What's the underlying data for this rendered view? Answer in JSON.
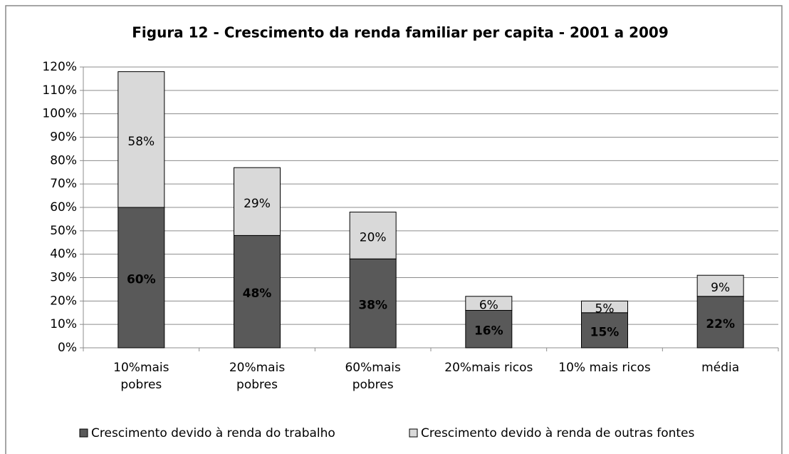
{
  "chart_data": {
    "type": "stacked_bar",
    "title": "Figura 12 - Crescimento da renda familiar per capita - 2001 a 2009",
    "categories": [
      "10%mais\npobres",
      "20%mais\npobres",
      "60%mais\npobres",
      "20%mais ricos",
      "10% mais ricos",
      "média"
    ],
    "series": [
      {
        "name": "Crescimento devido à renda do trabalho",
        "color": "#595959",
        "values": [
          60,
          48,
          38,
          16,
          15,
          22
        ],
        "value_labels": [
          "60%",
          "48%",
          "38%",
          "16%",
          "15%",
          "22%"
        ]
      },
      {
        "name": "Crescimento devido à renda de outras fontes",
        "color": "#d9d9d9",
        "values": [
          58,
          29,
          20,
          6,
          5,
          9
        ],
        "value_labels": [
          "58%",
          "29%",
          "20%",
          "6%",
          "5%",
          "9%"
        ]
      }
    ],
    "ylim": [
      0,
      120
    ],
    "yticks": [
      {
        "value": 0,
        "label": "0%"
      },
      {
        "value": 10,
        "label": "10%"
      },
      {
        "value": 20,
        "label": "20%"
      },
      {
        "value": 30,
        "label": "30%"
      },
      {
        "value": 40,
        "label": "40%"
      },
      {
        "value": 50,
        "label": "50%"
      },
      {
        "value": 60,
        "label": "60%"
      },
      {
        "value": 70,
        "label": "70%"
      },
      {
        "value": 80,
        "label": "80%"
      },
      {
        "value": 90,
        "label": "90%"
      },
      {
        "value": 100,
        "label": "100%"
      },
      {
        "value": 110,
        "label": "110%"
      },
      {
        "value": 120,
        "label": "120%"
      }
    ],
    "grid": true,
    "legend": "bottom"
  }
}
